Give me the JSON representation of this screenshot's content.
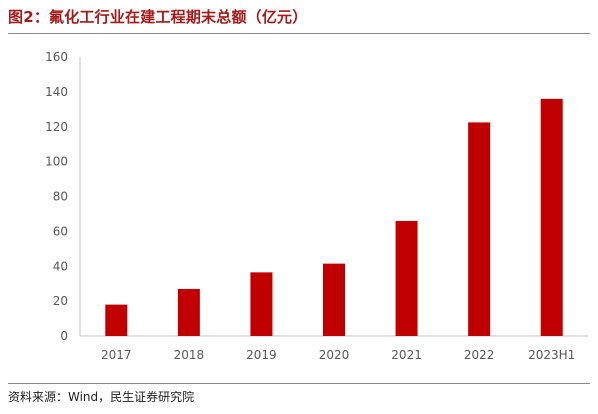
{
  "title": "图2：氟化工行业在建工程期末总额（亿元）",
  "source": "资料来源：Wind，民生证券研究院",
  "chart_data": {
    "type": "bar",
    "title": "图2：氟化工行业在建工程期末总额（亿元）",
    "categories": [
      "2017",
      "2018",
      "2019",
      "2020",
      "2021",
      "2022",
      "2023H1"
    ],
    "values": [
      18,
      27,
      36.5,
      41.5,
      66,
      122.5,
      136
    ],
    "ylim": [
      0,
      160
    ],
    "yticks": [
      0,
      20,
      40,
      60,
      80,
      100,
      120,
      140,
      160
    ],
    "grid": false,
    "legend": "none",
    "bar_color": "#c00000"
  }
}
